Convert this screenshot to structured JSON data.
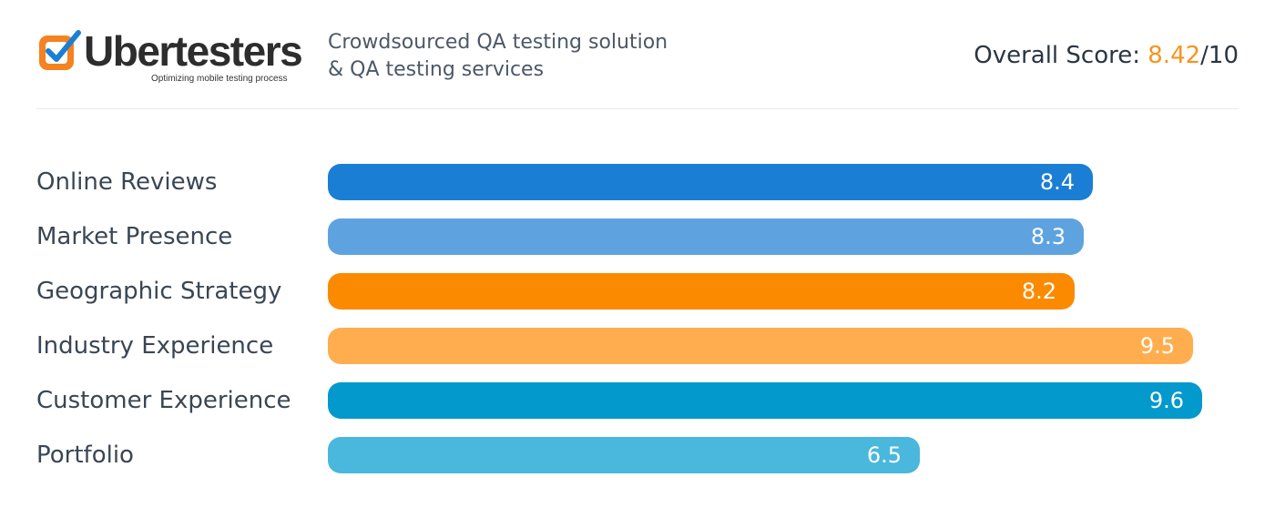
{
  "brand": {
    "name": "Ubertesters",
    "tagline_small": "Optimizing mobile testing process",
    "description_line1": "Crowdsourced QA testing solution",
    "description_line2": "& QA testing services",
    "colors": {
      "orange": "#f7941d",
      "blue": "#1a7ed4"
    }
  },
  "overall": {
    "label": "Overall Score: ",
    "score": "8.42",
    "max": "/10"
  },
  "chart_data": {
    "type": "bar",
    "orientation": "horizontal",
    "title": "",
    "xlim": [
      0,
      10
    ],
    "categories": [
      "Online Reviews",
      "Market Presence",
      "Geographic Strategy",
      "Industry Experience",
      "Customer Experience",
      "Portfolio"
    ],
    "values": [
      8.4,
      8.3,
      8.2,
      9.5,
      9.6,
      6.5
    ],
    "value_labels": [
      "8.4",
      "8.3",
      "8.2",
      "9.5",
      "9.6",
      "6.5"
    ],
    "colors": [
      "#1a7ed4",
      "#5ea3e0",
      "#fb8a00",
      "#ffad4e",
      "#0399cc",
      "#4ab7dc"
    ]
  }
}
